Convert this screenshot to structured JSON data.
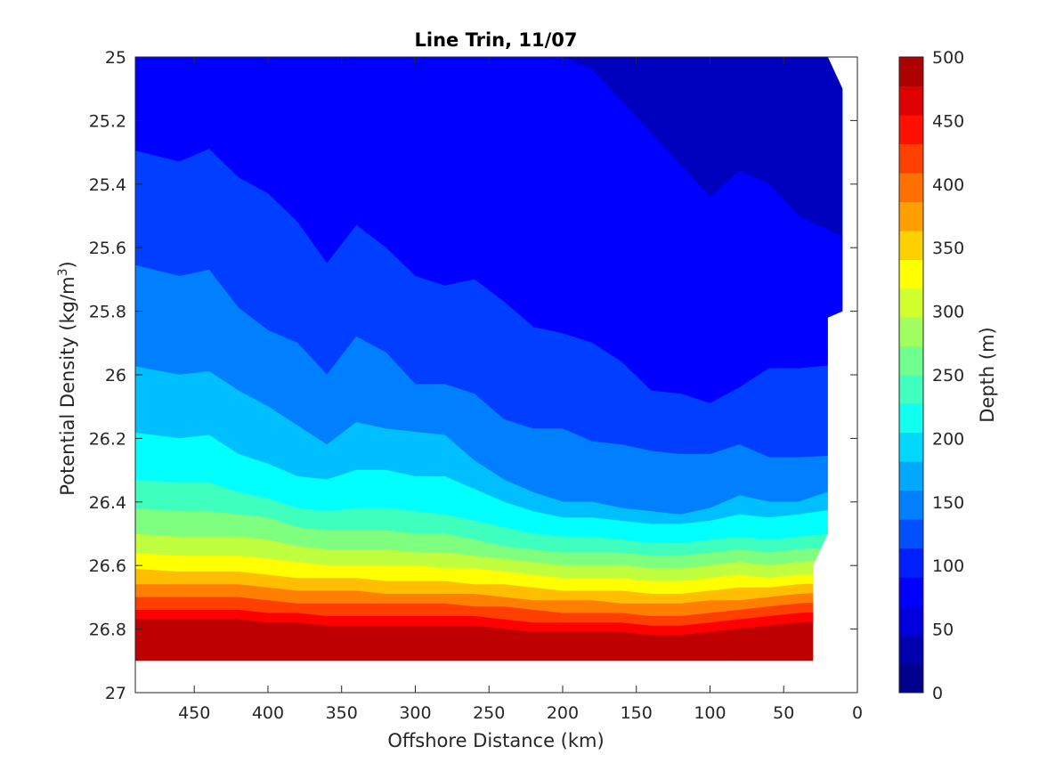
{
  "chart_data": {
    "type": "contour",
    "title": "Line Trin, 11/07",
    "xlabel": "Offshore Distance (km)",
    "ylabel_main": "Potential Density (kg/m",
    "ylabel_sup": "3",
    "ylabel_end": ")",
    "colorbar_label": "Depth (m)",
    "xlim": [
      490,
      0
    ],
    "x_reversed": true,
    "ylim": [
      25,
      27
    ],
    "y_reversed": true,
    "xticks": [
      450,
      400,
      350,
      300,
      250,
      200,
      150,
      100,
      50,
      0
    ],
    "xtick_labels": [
      "450",
      "400",
      "350",
      "300",
      "250",
      "200",
      "150",
      "100",
      "50",
      "0"
    ],
    "yticks": [
      25,
      25.2,
      25.4,
      25.6,
      25.8,
      26,
      26.2,
      26.4,
      26.6,
      26.8,
      27
    ],
    "ytick_labels": [
      "25",
      "25.2",
      "25.4",
      "25.6",
      "25.8",
      "26",
      "26.2",
      "26.4",
      "26.6",
      "26.8",
      "27"
    ],
    "colorbar_range": [
      0,
      500
    ],
    "colorbar_ticks": [
      0,
      50,
      100,
      150,
      200,
      250,
      300,
      350,
      400,
      450,
      500
    ],
    "colorbar_tick_labels": [
      "0",
      "50",
      "100",
      "150",
      "200",
      "250",
      "300",
      "350",
      "400",
      "450",
      "500"
    ],
    "contour_levels": [
      0,
      25,
      50,
      75,
      100,
      125,
      150,
      175,
      200,
      225,
      250,
      275,
      300,
      325,
      350,
      375,
      400,
      425,
      450,
      475,
      500
    ],
    "colormap": "jet",
    "level_colors": [
      "#00007F",
      "#0000BF",
      "#0000FF",
      "#003FFF",
      "#007FFF",
      "#00BFFF",
      "#00FFFF",
      "#3FFFBF",
      "#7FFF7F",
      "#BFFF3F",
      "#FFFF00",
      "#FFBF00",
      "#FF7F00",
      "#FF3F00",
      "#FF0000",
      "#BF0000"
    ],
    "colorbar_colors": [
      "#00008F",
      "#0000AF",
      "#0000DF",
      "#0000FF",
      "#0020FF",
      "#0050FF",
      "#0080FF",
      "#00A8FF",
      "#00D8FF",
      "#10FFEF",
      "#40FFBF",
      "#70FF8F",
      "#A0FF5F",
      "#D0FF2F",
      "#FFFF00",
      "#FFD000",
      "#FFA000",
      "#FF7000",
      "#FF4000",
      "#FF1000",
      "#DF0000",
      "#AF0000"
    ],
    "depth_contours": {
      "x_km": [
        490,
        460,
        440,
        420,
        400,
        380,
        360,
        340,
        320,
        300,
        280,
        260,
        240,
        220,
        200,
        180,
        160,
        140,
        120,
        100,
        80,
        60,
        40,
        20
      ],
      "isopycnal_density_at_depth": [
        {
          "depth": 25,
          "density": [
            25.0,
            25.0,
            25.0,
            25.0,
            25.0,
            25.0,
            25.0,
            25.0,
            25.0,
            25.0,
            25.0,
            25.0,
            25.0,
            25.0,
            25.0,
            25.0,
            25.0,
            25.0,
            25.0,
            25.0,
            25.0,
            25.0,
            25.0,
            25.0
          ]
        },
        {
          "depth": 50,
          "density": [
            25.0,
            25.0,
            25.0,
            25.0,
            25.0,
            25.0,
            25.0,
            25.0,
            25.0,
            25.0,
            25.0,
            25.0,
            25.0,
            25.0,
            25.0,
            25.04,
            25.14,
            25.24,
            25.34,
            25.44,
            25.36,
            25.4,
            25.5,
            25.6
          ]
        },
        {
          "depth": 75,
          "density": [
            25.29,
            25.33,
            25.29,
            25.38,
            25.43,
            25.52,
            25.65,
            25.53,
            25.6,
            25.69,
            25.72,
            25.7,
            25.77,
            25.85,
            25.87,
            25.9,
            25.96,
            26.05,
            26.06,
            26.09,
            26.04,
            25.98,
            25.98,
            25.96
          ]
        },
        {
          "depth": 100,
          "density": [
            25.65,
            25.69,
            25.67,
            25.79,
            25.86,
            25.9,
            26.0,
            25.88,
            25.93,
            26.03,
            26.03,
            26.06,
            26.14,
            26.17,
            26.17,
            26.21,
            26.22,
            26.24,
            26.25,
            26.25,
            26.22,
            26.26,
            26.26,
            26.25
          ]
        },
        {
          "depth": 125,
          "density": [
            25.97,
            26.0,
            25.99,
            26.05,
            26.1,
            26.16,
            26.22,
            26.15,
            26.17,
            26.18,
            26.19,
            26.27,
            26.33,
            26.37,
            26.4,
            26.4,
            26.42,
            26.43,
            26.44,
            26.42,
            26.38,
            26.4,
            26.4,
            26.33
          ]
        },
        {
          "depth": 150,
          "density": [
            26.18,
            26.2,
            26.19,
            26.25,
            26.28,
            26.32,
            26.33,
            26.3,
            26.3,
            26.32,
            26.32,
            26.36,
            26.4,
            26.43,
            26.45,
            26.45,
            26.46,
            26.47,
            26.47,
            26.46,
            26.44,
            26.45,
            26.44,
            26.41
          ]
        },
        {
          "depth": 175,
          "density": [
            26.33,
            26.34,
            26.34,
            26.37,
            26.39,
            26.42,
            26.43,
            26.42,
            26.42,
            26.43,
            26.44,
            26.46,
            26.48,
            26.5,
            26.51,
            26.51,
            26.52,
            26.53,
            26.53,
            26.52,
            26.51,
            26.52,
            26.51,
            26.49
          ]
        },
        {
          "depth": 200,
          "density": [
            26.42,
            26.43,
            26.43,
            26.44,
            26.45,
            26.48,
            26.49,
            26.49,
            26.49,
            26.5,
            26.5,
            26.52,
            26.54,
            26.55,
            26.56,
            26.56,
            26.56,
            26.57,
            26.57,
            26.56,
            26.55,
            26.56,
            26.55,
            26.54
          ]
        },
        {
          "depth": 225,
          "density": [
            26.5,
            26.51,
            26.51,
            26.51,
            26.52,
            26.54,
            26.55,
            26.55,
            26.55,
            26.56,
            26.56,
            26.57,
            26.58,
            26.59,
            26.6,
            26.6,
            26.6,
            26.61,
            26.61,
            26.6,
            26.59,
            26.6,
            26.59,
            26.58
          ]
        },
        {
          "depth": 250,
          "density": [
            26.56,
            26.57,
            26.57,
            26.57,
            26.58,
            26.59,
            26.6,
            26.6,
            26.6,
            26.6,
            26.61,
            26.61,
            26.62,
            26.63,
            26.64,
            26.64,
            26.64,
            26.65,
            26.65,
            26.64,
            26.63,
            26.64,
            26.63,
            26.62
          ]
        },
        {
          "depth": 275,
          "density": [
            26.61,
            26.62,
            26.62,
            26.62,
            26.63,
            26.64,
            26.64,
            26.64,
            26.65,
            26.65,
            26.65,
            26.66,
            26.66,
            26.67,
            26.68,
            26.68,
            26.68,
            26.69,
            26.69,
            26.68,
            26.67,
            26.67,
            26.66,
            26.65
          ]
        },
        {
          "depth": 300,
          "density": [
            26.66,
            26.66,
            26.66,
            26.66,
            26.67,
            26.68,
            26.68,
            26.68,
            26.69,
            26.69,
            26.69,
            26.69,
            26.7,
            26.71,
            26.71,
            26.71,
            26.72,
            26.72,
            26.72,
            26.71,
            26.71,
            26.7,
            26.69,
            26.68
          ]
        },
        {
          "depth": 325,
          "density": [
            26.7,
            26.7,
            26.7,
            26.7,
            26.71,
            26.72,
            26.72,
            26.72,
            26.72,
            26.72,
            26.72,
            26.73,
            26.73,
            26.74,
            26.75,
            26.75,
            26.75,
            26.76,
            26.76,
            26.75,
            26.74,
            26.73,
            26.72,
            26.71
          ]
        },
        {
          "depth": 350,
          "density": [
            26.74,
            26.74,
            26.74,
            26.74,
            26.75,
            26.75,
            26.76,
            26.76,
            26.76,
            26.76,
            26.76,
            26.76,
            26.77,
            26.78,
            26.78,
            26.78,
            26.78,
            26.79,
            26.79,
            26.78,
            26.77,
            26.76,
            26.75,
            26.74
          ]
        },
        {
          "depth": 375,
          "density": [
            26.77,
            26.77,
            26.77,
            26.77,
            26.78,
            26.78,
            26.79,
            26.79,
            26.79,
            26.79,
            26.79,
            26.79,
            26.8,
            26.81,
            26.81,
            26.81,
            26.81,
            26.82,
            26.82,
            26.81,
            26.8,
            26.79,
            26.78,
            26.77
          ]
        },
        {
          "depth": 400,
          "density": [
            26.81,
            26.81,
            26.81,
            26.81,
            26.81,
            26.82,
            26.82,
            26.82,
            26.82,
            26.82,
            26.82,
            26.82,
            26.83,
            26.84,
            26.84,
            26.84,
            26.84,
            26.85,
            26.85,
            26.84,
            26.83,
            26.82,
            26.81,
            26.8
          ]
        },
        {
          "depth": 425,
          "density": [
            26.84,
            26.84,
            26.84,
            26.84,
            26.84,
            26.85,
            26.85,
            26.85,
            26.85,
            26.85,
            26.85,
            26.85,
            26.86,
            26.86,
            26.87,
            26.87,
            26.87,
            26.87,
            26.87,
            26.86,
            26.86,
            26.85,
            26.84,
            26.83
          ]
        },
        {
          "depth": 450,
          "density": [
            26.87,
            26.87,
            26.87,
            26.87,
            26.87,
            26.88,
            26.88,
            26.88,
            26.88,
            26.88,
            26.88,
            26.88,
            26.88,
            26.89,
            26.89,
            26.89,
            26.89,
            26.89,
            26.89,
            26.89,
            26.88,
            26.88,
            26.87,
            26.86
          ]
        }
      ],
      "max_density": 26.9,
      "valid_boundary": [
        {
          "x": 490,
          "y": 25.0
        },
        {
          "x": 20,
          "y": 25.0
        },
        {
          "x": 10,
          "y": 25.1
        },
        {
          "x": 10,
          "y": 25.8
        },
        {
          "x": 20,
          "y": 25.82
        },
        {
          "x": 20,
          "y": 26.5
        },
        {
          "x": 30,
          "y": 26.6
        },
        {
          "x": 30,
          "y": 26.9
        },
        {
          "x": 490,
          "y": 26.9
        }
      ]
    }
  }
}
